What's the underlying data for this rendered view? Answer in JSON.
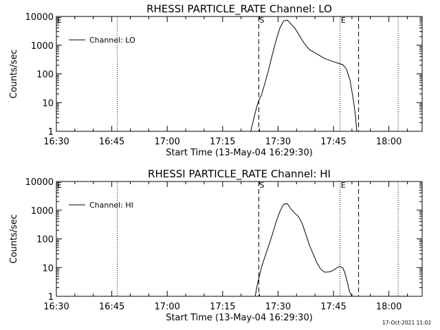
{
  "footer_stamp": "17-Oct-2021 11:02",
  "chart_data": [
    {
      "type": "line",
      "title": "RHESSI PARTICLE_RATE Channel: LO",
      "xlabel": "Start Time (13-May-04 16:29:30)",
      "ylabel": "Counts/sec",
      "y_scale": "log",
      "ylim": [
        1,
        10000
      ],
      "xlim_minutes": [
        0,
        99
      ],
      "x_ticks": [
        {
          "label": "16:30",
          "min": 0
        },
        {
          "label": "16:45",
          "min": 15
        },
        {
          "label": "17:00",
          "min": 30
        },
        {
          "label": "17:15",
          "min": 45
        },
        {
          "label": "17:30",
          "min": 60
        },
        {
          "label": "17:45",
          "min": 75
        },
        {
          "label": "18:00",
          "min": 90
        }
      ],
      "y_ticks": [
        {
          "label": "1",
          "value": 1
        },
        {
          "label": "10",
          "value": 10
        },
        {
          "label": "100",
          "value": 100
        },
        {
          "label": "1000",
          "value": 1000
        },
        {
          "label": "10000",
          "value": 10000
        }
      ],
      "legend": {
        "entry": "Channel: LO",
        "position": "top-left"
      },
      "markers": [
        {
          "label": "E",
          "min": 0,
          "style": "dotted"
        },
        {
          "label": "",
          "min": 16.5,
          "style": "dotted"
        },
        {
          "label": "S",
          "min": 54.8,
          "style": "dashed"
        },
        {
          "label": "E",
          "min": 76.8,
          "style": "dotted"
        },
        {
          "label": "",
          "min": 81.8,
          "style": "dashed"
        },
        {
          "label": "",
          "min": 92.5,
          "style": "dotted"
        }
      ],
      "series": [
        {
          "name": "Channel: LO",
          "x": [
            52.6,
            53.5,
            54.2,
            54.8,
            55.5,
            56.5,
            57.5,
            58.5,
            59.5,
            60.5,
            61.5,
            62.5,
            63.5,
            64.5,
            65.5,
            66.5,
            67.5,
            68.5,
            70.5,
            72.5,
            74.5,
            76.5,
            77.5,
            78.5,
            79.5,
            80.5,
            81.0,
            81.3
          ],
          "y": [
            1,
            3,
            7,
            12,
            18,
            50,
            150,
            500,
            1500,
            4000,
            7000,
            7500,
            5500,
            4000,
            2500,
            1500,
            1000,
            700,
            500,
            350,
            280,
            230,
            210,
            150,
            60,
            10,
            3,
            1
          ]
        }
      ]
    },
    {
      "type": "line",
      "title": "RHESSI PARTICLE_RATE Channel: HI",
      "xlabel": "Start Time (13-May-04 16:29:30)",
      "ylabel": "Counts/sec",
      "y_scale": "log",
      "ylim": [
        1,
        10000
      ],
      "xlim_minutes": [
        0,
        99
      ],
      "x_ticks": [
        {
          "label": "16:30",
          "min": 0
        },
        {
          "label": "16:45",
          "min": 15
        },
        {
          "label": "17:00",
          "min": 30
        },
        {
          "label": "17:15",
          "min": 45
        },
        {
          "label": "17:30",
          "min": 60
        },
        {
          "label": "17:45",
          "min": 75
        },
        {
          "label": "18:00",
          "min": 90
        }
      ],
      "y_ticks": [
        {
          "label": "1",
          "value": 1
        },
        {
          "label": "10",
          "value": 10
        },
        {
          "label": "100",
          "value": 100
        },
        {
          "label": "1000",
          "value": 1000
        },
        {
          "label": "10000",
          "value": 10000
        }
      ],
      "legend": {
        "entry": "Channel: HI",
        "position": "top-left"
      },
      "markers": [
        {
          "label": "E",
          "min": 0,
          "style": "dotted"
        },
        {
          "label": "",
          "min": 16.5,
          "style": "dotted"
        },
        {
          "label": "S",
          "min": 54.8,
          "style": "dashed"
        },
        {
          "label": "E",
          "min": 76.8,
          "style": "dotted"
        },
        {
          "label": "",
          "min": 81.8,
          "style": "dashed"
        },
        {
          "label": "",
          "min": 92.5,
          "style": "dotted"
        }
      ],
      "series": [
        {
          "name": "Channel: HI",
          "x": [
            53.8,
            54.5,
            55.5,
            56.5,
            57.5,
            58.5,
            59.5,
            60.5,
            61.5,
            62.5,
            63.5,
            64.5,
            65.5,
            66.5,
            67.5,
            68.5,
            69.5,
            70.5,
            71.5,
            72.5,
            73.5,
            74.5,
            75.5,
            76.5,
            77.5,
            78.0,
            78.8,
            79.3,
            80.0
          ],
          "y": [
            1,
            3,
            10,
            25,
            60,
            150,
            400,
            900,
            1600,
            1700,
            1100,
            800,
            600,
            350,
            150,
            60,
            30,
            15,
            9,
            7,
            7,
            7.5,
            9,
            11,
            10,
            7,
            3,
            1.5,
            1
          ]
        }
      ]
    }
  ]
}
